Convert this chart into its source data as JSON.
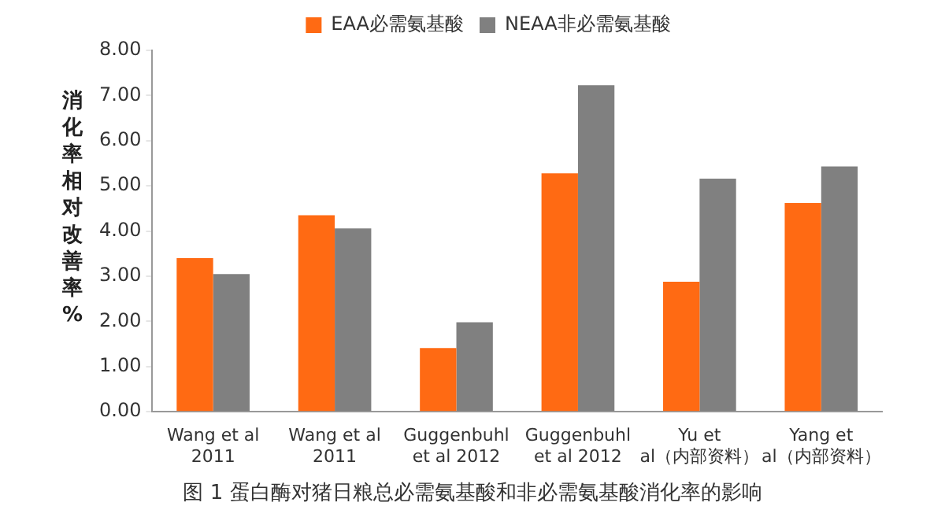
{
  "chart_data": {
    "type": "bar",
    "ylabel": "消化率相对改善率%",
    "categories": [
      "Wang et al 2011",
      "Wang et al 2011",
      "Guggenbuhl et al 2012",
      "Guggenbuhl et al 2012",
      "Yu et al（内部资料）",
      "Yang et al（内部资料）"
    ],
    "series": [
      {
        "name": "EAA必需氨基酸",
        "color": "#ff6a13",
        "values": [
          3.4,
          4.35,
          1.41,
          5.28,
          2.88,
          4.62
        ]
      },
      {
        "name": "NEAA非必需氨基酸",
        "color": "#808080",
        "values": [
          3.05,
          4.06,
          1.98,
          7.23,
          5.16,
          5.43
        ]
      }
    ],
    "ylim": [
      0,
      8
    ],
    "yticks": [
      {
        "value": 0,
        "label": "0.00"
      },
      {
        "value": 1,
        "label": "1.00"
      },
      {
        "value": 2,
        "label": "2.00"
      },
      {
        "value": 3,
        "label": "3.00"
      },
      {
        "value": 4,
        "label": "4.00"
      },
      {
        "value": 5,
        "label": "5.00"
      },
      {
        "value": 6,
        "label": "6.00"
      },
      {
        "value": 7,
        "label": "7.00"
      },
      {
        "value": 8,
        "label": "8.00"
      }
    ],
    "grid": false,
    "legend": "top",
    "annotations": [
      "图 1 蛋白酶对猪日粮总必需氨基酸和非必需氨基酸消化率的影响"
    ]
  }
}
